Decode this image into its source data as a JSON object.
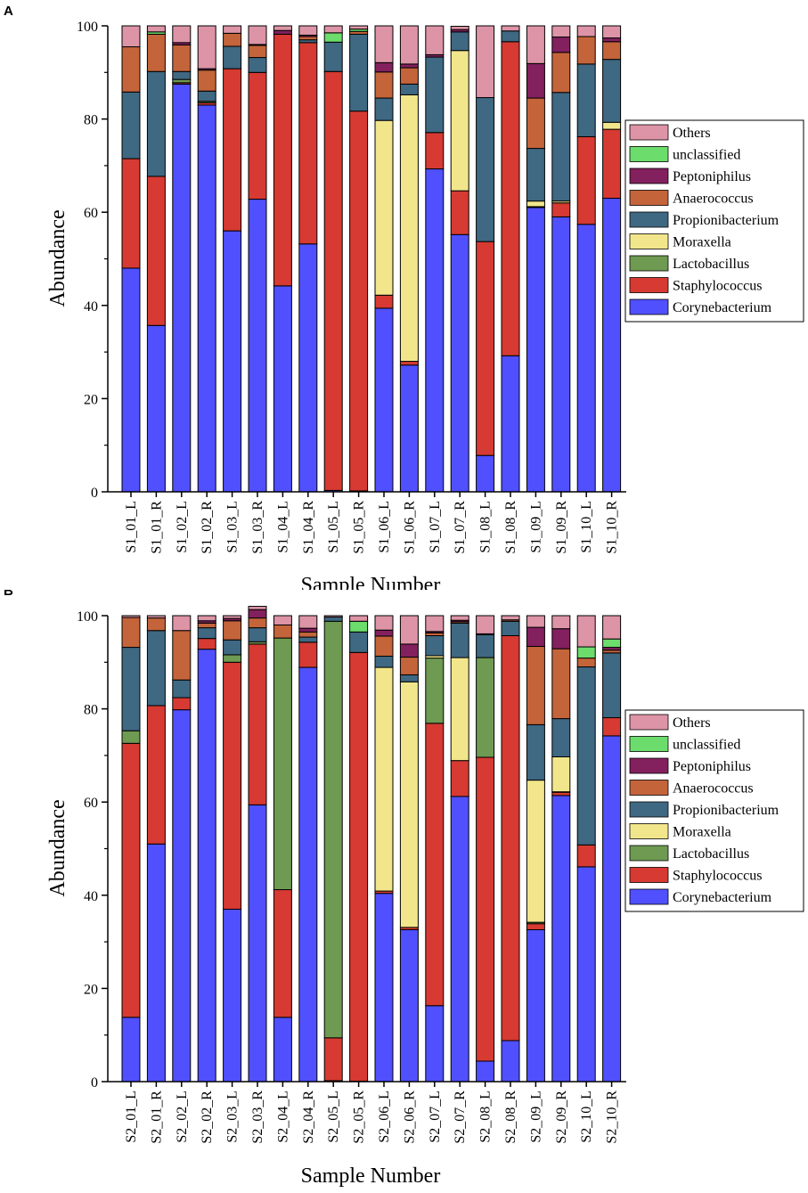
{
  "legend": [
    "Others",
    "unclassified",
    "Peptoniphilus",
    "Anaerococcus",
    "Propionibacterium",
    "Moraxella",
    "Lactobacillus",
    "Staphylococcus",
    "Corynebacterium"
  ],
  "colors": {
    "Corynebacterium": "#5050ff",
    "Staphylococcus": "#d63a32",
    "Lactobacillus": "#6e9a52",
    "Moraxella": "#f2e68c",
    "Propionibacterium": "#3f6882",
    "Anaerococcus": "#c4643a",
    "Peptoniphilus": "#83205e",
    "unclassified": "#6cdc6c",
    "Others": "#dd94a6"
  },
  "chart_data": [
    {
      "panel": "A",
      "type": "bar",
      "stacked": true,
      "xlabel": "Sample Number",
      "ylabel": "Abundance",
      "ylim": [
        0,
        100
      ],
      "yticks": [
        0,
        20,
        40,
        60,
        80,
        100
      ],
      "categories": [
        "S1_01_L",
        "S1_01_R",
        "S1_02_L",
        "S1_02_R",
        "S1_03_L",
        "S1_03_R",
        "S1_04_L",
        "S1_04_R",
        "S1_05_L",
        "S1_05_R",
        "S1_06_L",
        "S1_06_R",
        "S1_07_L",
        "S1_07_R",
        "S1_08_L",
        "S1_08_R",
        "S1_09_L",
        "S1_09_R",
        "S1_10_L",
        "S1_10_R"
      ],
      "series": [
        {
          "name": "Corynebacterium",
          "values": [
            48.0,
            35.7,
            87.5,
            83.0,
            56.0,
            62.8,
            44.2,
            53.2,
            0.3,
            0.2,
            39.4,
            27.2,
            69.3,
            55.2,
            7.8,
            29.2,
            61.0,
            59.0,
            57.4,
            63.0
          ]
        },
        {
          "name": "Staphylococcus",
          "values": [
            23.5,
            32.0,
            0.3,
            0.5,
            34.8,
            27.2,
            54.0,
            43.2,
            89.9,
            81.5,
            2.8,
            0.8,
            7.8,
            9.4,
            45.9,
            67.4,
            0.2,
            3.0,
            18.8,
            14.8
          ]
        },
        {
          "name": "Lactobacillus",
          "values": [
            0.0,
            0.0,
            0.7,
            0.3,
            0.0,
            0.0,
            0.0,
            0.0,
            0.0,
            0.0,
            0.0,
            0.0,
            0.0,
            0.0,
            0.0,
            0.0,
            0.0,
            0.0,
            0.0,
            0.0
          ]
        },
        {
          "name": "Moraxella",
          "values": [
            0.0,
            0.0,
            0.0,
            0.0,
            0.0,
            0.0,
            0.0,
            0.0,
            0.0,
            0.0,
            37.5,
            57.2,
            0.0,
            30.1,
            0.0,
            0.0,
            1.2,
            0.4,
            0.0,
            1.5
          ]
        },
        {
          "name": "Propionibacterium",
          "values": [
            14.3,
            22.5,
            1.7,
            2.2,
            4.8,
            3.2,
            0.0,
            0.6,
            6.3,
            16.5,
            4.8,
            2.3,
            16.2,
            4.0,
            30.9,
            2.3,
            11.3,
            23.3,
            15.6,
            13.5
          ]
        },
        {
          "name": "Anaerococcus",
          "values": [
            9.7,
            8.0,
            5.7,
            4.5,
            2.8,
            2.6,
            0.0,
            0.7,
            0.0,
            0.6,
            5.6,
            3.5,
            0.0,
            0.0,
            0.0,
            0.0,
            10.8,
            8.6,
            5.9,
            3.8
          ]
        },
        {
          "name": "Peptoniphilus",
          "values": [
            0.0,
            0.0,
            0.5,
            0.3,
            0.0,
            0.2,
            0.8,
            0.3,
            0.0,
            0.0,
            2.0,
            0.8,
            0.5,
            0.5,
            0.0,
            0.0,
            7.4,
            3.3,
            0.0,
            0.8
          ]
        },
        {
          "name": "unclassified",
          "values": [
            0.0,
            0.5,
            0.0,
            0.0,
            0.0,
            0.0,
            0.0,
            0.0,
            2.0,
            0.5,
            0.0,
            0.0,
            0.0,
            0.0,
            0.0,
            0.0,
            0.0,
            0.0,
            0.0,
            0.0
          ]
        },
        {
          "name": "Others",
          "values": [
            4.5,
            1.3,
            3.6,
            9.2,
            1.6,
            4.0,
            1.0,
            2.0,
            1.5,
            0.7,
            7.9,
            8.2,
            6.2,
            0.7,
            15.4,
            1.1,
            8.1,
            2.4,
            2.3,
            2.6
          ]
        }
      ]
    },
    {
      "panel": "B",
      "type": "bar",
      "stacked": true,
      "xlabel": "Sample Number",
      "ylabel": "Abundance",
      "ylim": [
        0,
        100
      ],
      "yticks": [
        0,
        20,
        40,
        60,
        80,
        100
      ],
      "categories": [
        "S2_01_L",
        "S2_01_R",
        "S2_02_L",
        "S2_02_R",
        "S2_03_L",
        "S2_03_R",
        "S2_04_L",
        "S2_04_R",
        "S2_05_L",
        "S2_05_R",
        "S2_06_L",
        "S2_06_R",
        "S2_07_L",
        "S2_07_R",
        "S2_08_L",
        "S2_08_R",
        "S2_09_L",
        "S2_09_R",
        "S2_10_L",
        "S2_10_R"
      ],
      "series": [
        {
          "name": "Corynebacterium",
          "values": [
            13.8,
            51.0,
            79.8,
            92.8,
            37.0,
            59.4,
            13.8,
            88.9,
            0.2,
            0.1,
            40.4,
            32.6,
            16.3,
            61.2,
            4.4,
            8.8,
            32.6,
            61.4,
            46.1,
            74.2
          ]
        },
        {
          "name": "Staphylococcus",
          "values": [
            58.8,
            29.7,
            2.6,
            2.3,
            53.0,
            34.5,
            27.4,
            5.4,
            9.2,
            92.0,
            0.5,
            0.5,
            60.6,
            7.7,
            65.2,
            86.9,
            1.3,
            0.7,
            4.7,
            3.9
          ]
        },
        {
          "name": "Lactobacillus",
          "values": [
            2.7,
            0.0,
            0.0,
            0.0,
            1.6,
            0.5,
            54.0,
            0.0,
            89.4,
            0.0,
            0.0,
            0.0,
            14.0,
            0.0,
            21.4,
            0.0,
            0.3,
            0.1,
            0.0,
            0.0
          ]
        },
        {
          "name": "Moraxella",
          "values": [
            0.0,
            0.0,
            0.0,
            0.0,
            0.0,
            0.0,
            0.0,
            0.0,
            0.0,
            0.0,
            48.0,
            52.7,
            0.5,
            22.1,
            0.0,
            0.0,
            30.5,
            7.5,
            0.0,
            0.0
          ]
        },
        {
          "name": "Propionibacterium",
          "values": [
            17.9,
            16.1,
            3.8,
            2.3,
            3.2,
            3.0,
            0.0,
            1.1,
            0.9,
            4.4,
            2.4,
            1.5,
            4.3,
            7.4,
            4.9,
            3.1,
            11.9,
            8.2,
            38.2,
            13.9
          ]
        },
        {
          "name": "Anaerococcus",
          "values": [
            6.4,
            2.7,
            10.6,
            1.0,
            4.1,
            2.1,
            2.8,
            1.1,
            0.0,
            0.0,
            4.3,
            3.8,
            0.6,
            0.3,
            0.2,
            0.3,
            16.8,
            15.0,
            1.9,
            0.6
          ]
        },
        {
          "name": "Peptoniphilus",
          "values": [
            0.0,
            0.0,
            0.0,
            0.5,
            0.5,
            1.8,
            0.0,
            0.8,
            0.0,
            0.0,
            1.3,
            2.8,
            0.3,
            0.3,
            0.0,
            0.0,
            4.1,
            4.3,
            0.0,
            0.6
          ]
        },
        {
          "name": "unclassified",
          "values": [
            0.0,
            0.0,
            0.0,
            0.0,
            0.0,
            0.0,
            0.0,
            0.0,
            0.0,
            2.3,
            0.0,
            0.0,
            0.0,
            0.0,
            0.0,
            0.0,
            0.0,
            0.0,
            2.4,
            1.8
          ]
        },
        {
          "name": "Others",
          "values": [
            0.4,
            0.5,
            3.2,
            1.1,
            0.6,
            0.7,
            2.0,
            2.7,
            0.3,
            1.2,
            3.1,
            6.1,
            3.4,
            1.0,
            3.9,
            0.9,
            2.5,
            2.8,
            6.7,
            5.0
          ]
        }
      ]
    }
  ]
}
